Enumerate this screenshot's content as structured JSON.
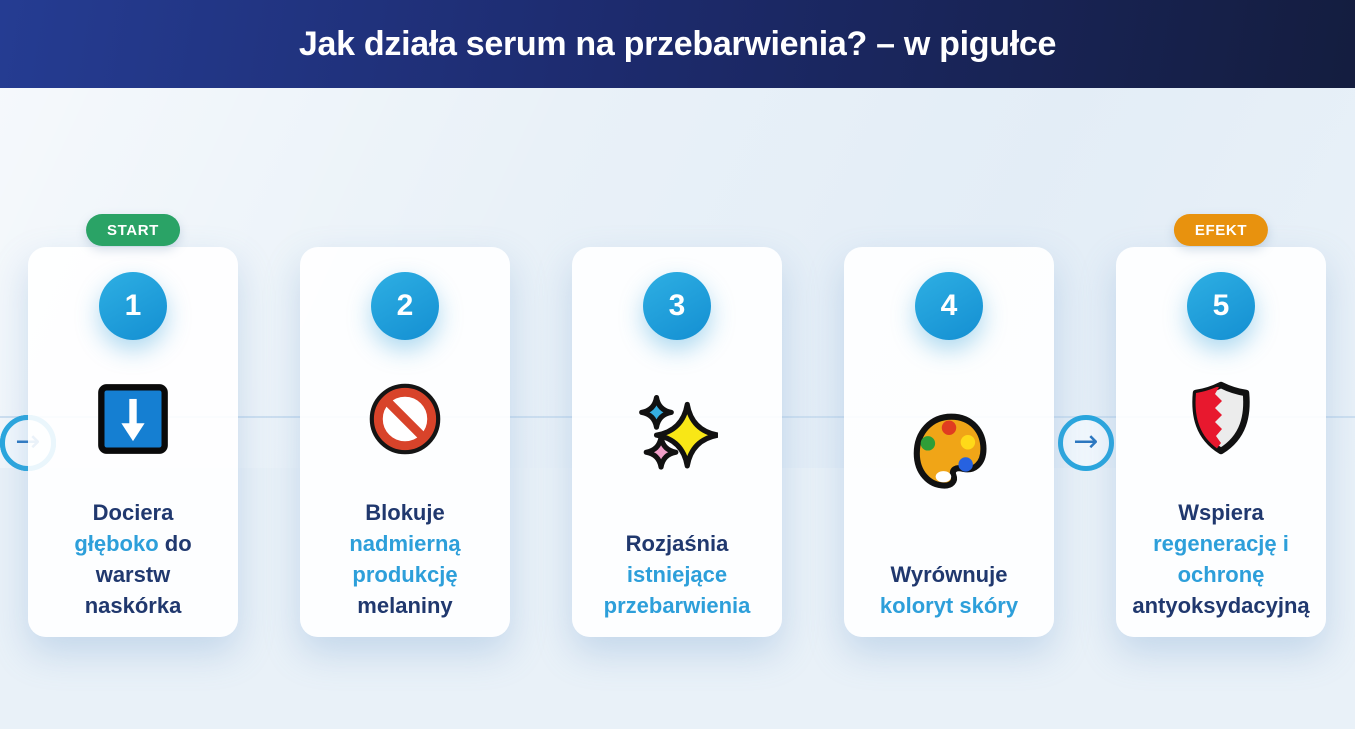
{
  "header": {
    "title": "Jak działa serum na przebarwienia? – w pigułce"
  },
  "colors": {
    "header_gradient_start": "#253c92",
    "header_gradient_end": "#141d3f",
    "page_background": "#e9f1f8",
    "card_background": "#ffffff",
    "number_circle": "#1c9cd9",
    "text_dark": "#20386e",
    "text_highlight": "#2d9fda",
    "connector_ring": "#29a6de",
    "connector_arrow": "#2c77c0",
    "badge_start": "#2aa366",
    "badge_efekt": "#e8920e"
  },
  "badges": {
    "start": {
      "label": "START",
      "bg": "#2aa366"
    },
    "efekt": {
      "label": "EFEKT",
      "bg": "#e8920e"
    }
  },
  "connector": {
    "arrow": "→"
  },
  "steps": [
    {
      "number": "1",
      "badge": "start",
      "icon": "down-arrow-icon",
      "lines": [
        [
          {
            "t": "Dociera",
            "hl": false
          }
        ],
        [
          {
            "t": "głęboko",
            "hl": true
          },
          {
            "t": " do",
            "hl": false
          }
        ],
        [
          {
            "t": "warstw",
            "hl": false
          }
        ],
        [
          {
            "t": "naskórka",
            "hl": false
          }
        ]
      ]
    },
    {
      "number": "2",
      "icon": "no-entry-icon",
      "lines": [
        [
          {
            "t": "Blokuje",
            "hl": false
          }
        ],
        [
          {
            "t": "nadmierną",
            "hl": true
          }
        ],
        [
          {
            "t": "produkcję",
            "hl": true
          }
        ],
        [
          {
            "t": "melaniny",
            "hl": false
          }
        ]
      ]
    },
    {
      "number": "3",
      "icon": "sparkles-icon",
      "lines": [
        [
          {
            "t": "Rozjaśnia",
            "hl": false
          }
        ],
        [
          {
            "t": "istniejące",
            "hl": true
          }
        ],
        [
          {
            "t": "przebarwienia",
            "hl": true
          }
        ]
      ]
    },
    {
      "number": "4",
      "icon": "palette-icon",
      "lines": [
        [
          {
            "t": "Wyrównuje",
            "hl": false
          }
        ],
        [
          {
            "t": "koloryt skóry",
            "hl": true
          }
        ]
      ]
    },
    {
      "number": "5",
      "badge": "efekt",
      "icon": "shield-icon",
      "lines": [
        [
          {
            "t": "Wspiera",
            "hl": false
          }
        ],
        [
          {
            "t": "regenerację i",
            "hl": true
          }
        ],
        [
          {
            "t": "ochronę",
            "hl": true
          }
        ],
        [
          {
            "t": "antyoksydacyjną",
            "hl": false
          }
        ]
      ]
    }
  ]
}
